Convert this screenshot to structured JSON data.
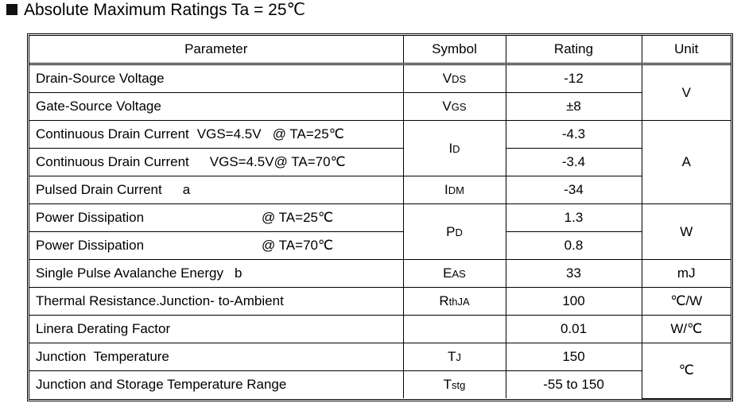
{
  "title": "Absolute Maximum Ratings Ta = 25℃",
  "table": {
    "header": [
      "Parameter",
      "Symbol",
      "Rating",
      "Unit"
    ],
    "rows": [
      {
        "parameter": "Drain-Source Voltage",
        "symbol": {
          "base": "V",
          "sub": "DS"
        },
        "rating": "-12",
        "unit": "V"
      },
      {
        "parameter": "Gate-Source Voltage",
        "symbol": {
          "base": "V",
          "sub": "GS"
        },
        "rating": "±8"
      },
      {
        "parameter": "Continuous Drain Current",
        "condition": "VGS=4.5V   @ TA=25℃",
        "symbol": {
          "base": "I",
          "sub": "D"
        },
        "rating": "-4.3",
        "unit": "A"
      },
      {
        "parameter": "Continuous Drain Current",
        "condition": "VGS=4.5V@ TA=70℃",
        "rating": "-3.4"
      },
      {
        "parameter": "Pulsed Drain Current",
        "note": "a",
        "symbol": {
          "base": "I",
          "sub": "DM"
        },
        "rating": "-34"
      },
      {
        "parameter": "Power Dissipation",
        "condition": "@ TA=25℃",
        "symbol": {
          "base": "P",
          "sub": "D"
        },
        "rating": "1.3",
        "unit": "W"
      },
      {
        "parameter": "Power Dissipation",
        "condition": "@ TA=70℃",
        "rating": "0.8"
      },
      {
        "parameter": "Single Pulse Avalanche Energy",
        "note": "b",
        "symbol": {
          "base": "E",
          "sub": "AS"
        },
        "rating": "33",
        "unit": "mJ"
      },
      {
        "parameter": "Thermal Resistance.Junction- to-Ambient",
        "symbol": {
          "base": "R",
          "sub": "thJA"
        },
        "rating": "100",
        "unit": "℃/W"
      },
      {
        "parameter": "Linera Derating Factor",
        "rating": "0.01",
        "unit": "W/℃"
      },
      {
        "parameter": "Junction  Temperature",
        "symbol": {
          "base": "T",
          "sub": "J"
        },
        "rating": "150",
        "unit": "℃"
      },
      {
        "parameter": "Junction and Storage Temperature Range",
        "symbol": {
          "base": "T",
          "sub": "stg"
        },
        "rating": "-55 to 150"
      }
    ]
  }
}
